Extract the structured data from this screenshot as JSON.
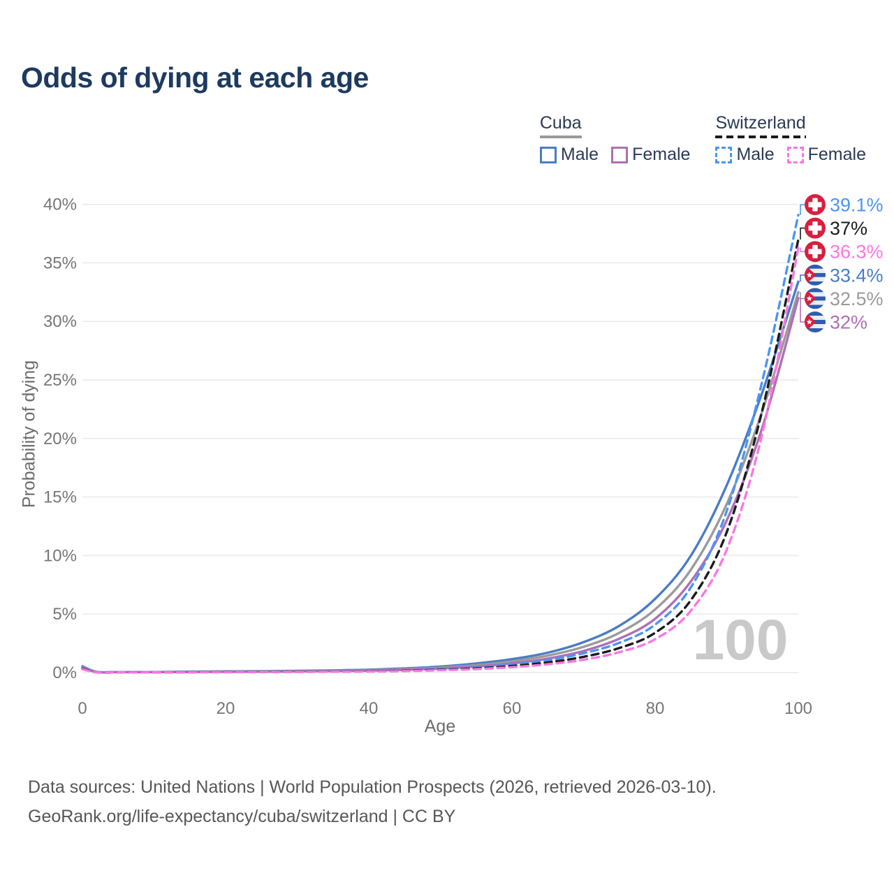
{
  "chart_data": {
    "type": "line",
    "title": "Odds of dying at each age",
    "xlabel": "Age",
    "ylabel": "Probability of dying",
    "xlim": [
      0,
      100
    ],
    "ylim": [
      0,
      40
    ],
    "grid": "horizontal",
    "legend_position": "top-right",
    "x_ticks": [
      {
        "value": 0,
        "label": "0"
      },
      {
        "value": 20,
        "label": "20"
      },
      {
        "value": 40,
        "label": "40"
      },
      {
        "value": 60,
        "label": "60"
      },
      {
        "value": 80,
        "label": "80"
      },
      {
        "value": 100,
        "label": "100"
      }
    ],
    "y_ticks": [
      {
        "value": 0,
        "label": "0%"
      },
      {
        "value": 5,
        "label": "5%"
      },
      {
        "value": 10,
        "label": "10%"
      },
      {
        "value": 15,
        "label": "15%"
      },
      {
        "value": 20,
        "label": "20%"
      },
      {
        "value": 25,
        "label": "25%"
      },
      {
        "value": 30,
        "label": "30%"
      },
      {
        "value": 35,
        "label": "35%"
      },
      {
        "value": 40,
        "label": "40%"
      }
    ],
    "ages": [
      0,
      2,
      5,
      10,
      15,
      20,
      25,
      30,
      35,
      40,
      45,
      50,
      55,
      60,
      65,
      70,
      75,
      80,
      85,
      90,
      95,
      100
    ],
    "series": [
      {
        "name": "Cuba Male",
        "country": "Cuba",
        "sex": "Male",
        "flag": "cuba",
        "color": "#4a7cc6",
        "dash": "solid",
        "end_label": "33.4%",
        "values": [
          0.55,
          0.06,
          0.05,
          0.05,
          0.08,
          0.1,
          0.12,
          0.15,
          0.19,
          0.25,
          0.36,
          0.52,
          0.78,
          1.15,
          1.7,
          2.6,
          4.0,
          6.3,
          10.0,
          16.0,
          24.0,
          33.4
        ]
      },
      {
        "name": "Cuba Both sexes",
        "country": "Cuba",
        "sex": "Both",
        "flag": "cuba",
        "color": "#9a9a9a",
        "dash": "solid",
        "end_label": "32.5%",
        "values": [
          0.5,
          0.055,
          0.045,
          0.045,
          0.065,
          0.08,
          0.1,
          0.125,
          0.16,
          0.21,
          0.3,
          0.43,
          0.64,
          0.96,
          1.45,
          2.2,
          3.4,
          5.4,
          8.8,
          14.4,
          22.4,
          32.5
        ]
      },
      {
        "name": "Cuba Female",
        "country": "Cuba",
        "sex": "Female",
        "flag": "cuba",
        "color": "#ae6fb5",
        "dash": "solid",
        "end_label": "32%",
        "values": [
          0.45,
          0.05,
          0.04,
          0.04,
          0.05,
          0.065,
          0.08,
          0.1,
          0.13,
          0.17,
          0.24,
          0.35,
          0.52,
          0.78,
          1.2,
          1.85,
          2.9,
          4.6,
          7.8,
          13.0,
          21.0,
          32.0
        ]
      },
      {
        "name": "Switzerland Male",
        "country": "Switzerland",
        "sex": "Male",
        "flag": "switzerland",
        "color": "#4b94f6",
        "dash": "dashed",
        "end_label": "39.1%",
        "values": [
          0.38,
          0.03,
          0.02,
          0.02,
          0.04,
          0.06,
          0.07,
          0.08,
          0.1,
          0.13,
          0.19,
          0.28,
          0.44,
          0.7,
          1.07,
          1.65,
          2.55,
          4.1,
          7.3,
          13.8,
          25.0,
          39.1
        ]
      },
      {
        "name": "Switzerland Both sexes",
        "country": "Switzerland",
        "sex": "Both",
        "flag": "switzerland",
        "color": "#1b1b1b",
        "dash": "dashed",
        "end_label": "37%",
        "values": [
          0.33,
          0.025,
          0.018,
          0.018,
          0.03,
          0.045,
          0.055,
          0.065,
          0.08,
          0.11,
          0.16,
          0.24,
          0.36,
          0.56,
          0.87,
          1.35,
          2.1,
          3.4,
          6.2,
          12.0,
          22.5,
          37.0
        ]
      },
      {
        "name": "Switzerland Female",
        "country": "Switzerland",
        "sex": "Female",
        "flag": "switzerland",
        "color": "#fb76e3",
        "dash": "dashed",
        "end_label": "36.3%",
        "values": [
          0.29,
          0.02,
          0.015,
          0.015,
          0.025,
          0.035,
          0.045,
          0.055,
          0.07,
          0.09,
          0.13,
          0.2,
          0.3,
          0.46,
          0.71,
          1.1,
          1.75,
          2.85,
          5.3,
          10.5,
          20.5,
          36.3
        ]
      }
    ],
    "hover_age_watermark": "100",
    "flag_colors": {
      "swiss_red": "#d6203e",
      "cuba_blue": "#2f5cad",
      "cuba_white": "#e9edf1"
    }
  },
  "legend": {
    "groups": [
      {
        "id": "cuba",
        "title": "Cuba",
        "underline_color": "#9a9a9a",
        "underline_style": "solid",
        "items": [
          {
            "label": "Male",
            "color": "#4a7cc6",
            "style": "solid"
          },
          {
            "label": "Female",
            "color": "#ae6fb5",
            "style": "solid"
          }
        ]
      },
      {
        "id": "switzerland",
        "title": "Switzerland",
        "underline_color": "#1b1b1b",
        "underline_style": "dashed",
        "items": [
          {
            "label": "Male",
            "color": "#4b94f6",
            "style": "dashed"
          },
          {
            "label": "Female",
            "color": "#fb76e3",
            "style": "dashed"
          }
        ]
      }
    ]
  },
  "footer": {
    "line1": "Data sources: United Nations | World Population Prospects (2026, retrieved 2026-03-10).",
    "line2": "GeoRank.org/life-expectancy/cuba/switzerland | CC BY"
  }
}
